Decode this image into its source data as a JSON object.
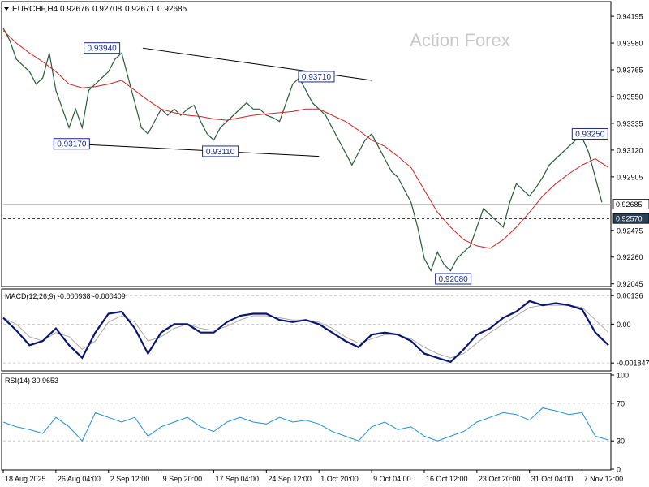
{
  "chart_data": {
    "type": "line",
    "symbol": "EURCHF,H4",
    "ohlc": {
      "open": "0.92676",
      "high": "0.92708",
      "low": "0.92671",
      "close": "0.92685"
    },
    "watermark": "Action Forex",
    "title": "",
    "xlabel": "",
    "ylabel": "",
    "price_axis": {
      "ylim": [
        0.9203,
        0.943
      ],
      "ticks": [
        0.94195,
        0.9398,
        0.93765,
        0.9355,
        0.93335,
        0.9312,
        0.92905,
        0.92475,
        0.9226,
        0.92045
      ],
      "tick_labels": [
        "0.94195",
        "0.93980",
        "0.93765",
        "0.93550",
        "0.93335",
        "0.93120",
        "0.92905",
        "0.92475",
        "0.92260",
        "0.92045"
      ],
      "current_price": 0.92685,
      "current_price_label": "0.92685",
      "support_level": 0.9257,
      "support_label": "0.92570"
    },
    "x_axis": {
      "labels": [
        "18 Aug 2025",
        "26 Aug 04:00",
        "2 Sep 12:00",
        "9 Sep 20:00",
        "17 Sep 04:00",
        "24 Sep 12:00",
        "1 Oct 20:00",
        "9 Oct 04:00",
        "16 Oct 12:00",
        "23 Oct 20:00",
        "31 Oct 04:00",
        "7 Nov 12:00"
      ],
      "label_bars": [
        0,
        40,
        80,
        120,
        160,
        200,
        240,
        280,
        320,
        360,
        400,
        440
      ],
      "total_bars": 460
    },
    "price_series": {
      "name": "",
      "x": [
        0,
        5,
        10,
        15,
        20,
        25,
        30,
        35,
        40,
        45,
        50,
        55,
        60,
        65,
        70,
        75,
        80,
        85,
        90,
        95,
        100,
        105,
        110,
        115,
        120,
        125,
        130,
        135,
        140,
        145,
        150,
        155,
        160,
        165,
        170,
        175,
        180,
        185,
        190,
        195,
        200,
        205,
        210,
        215,
        220,
        225,
        230,
        235,
        240,
        245,
        250,
        255,
        260,
        265,
        270,
        275,
        280,
        285,
        290,
        295,
        300,
        305,
        310,
        315,
        320,
        325,
        330,
        335,
        340,
        345,
        350,
        355,
        360,
        365,
        370,
        375,
        380,
        385,
        390,
        395,
        400,
        405,
        410,
        415,
        420,
        425,
        430,
        435,
        440,
        445,
        450,
        455
      ],
      "y": [
        0.941,
        0.94,
        0.9385,
        0.938,
        0.9375,
        0.9365,
        0.937,
        0.939,
        0.936,
        0.9345,
        0.933,
        0.9345,
        0.933,
        0.936,
        0.9365,
        0.937,
        0.9375,
        0.9385,
        0.939,
        0.937,
        0.935,
        0.933,
        0.9325,
        0.9335,
        0.9345,
        0.934,
        0.9345,
        0.934,
        0.9345,
        0.9348,
        0.9335,
        0.9325,
        0.932,
        0.933,
        0.9335,
        0.934,
        0.9345,
        0.935,
        0.9345,
        0.9345,
        0.934,
        0.9338,
        0.9335,
        0.935,
        0.9365,
        0.937,
        0.936,
        0.935,
        0.9345,
        0.934,
        0.933,
        0.932,
        0.931,
        0.93,
        0.931,
        0.932,
        0.9325,
        0.9315,
        0.9305,
        0.9295,
        0.929,
        0.928,
        0.927,
        0.925,
        0.9225,
        0.9215,
        0.923,
        0.922,
        0.9215,
        0.9225,
        0.923,
        0.9235,
        0.925,
        0.9265,
        0.926,
        0.9255,
        0.925,
        0.927,
        0.9285,
        0.928,
        0.9275,
        0.9282,
        0.929,
        0.93,
        0.9305,
        0.931,
        0.9315,
        0.932,
        0.9322,
        0.931,
        0.929,
        0.927
      ]
    },
    "ma_series": {
      "name": "",
      "color": "#cc2222",
      "x": [
        0,
        10,
        20,
        30,
        40,
        50,
        60,
        70,
        80,
        90,
        100,
        110,
        120,
        130,
        140,
        150,
        160,
        170,
        180,
        190,
        200,
        210,
        220,
        230,
        240,
        250,
        260,
        270,
        280,
        290,
        300,
        310,
        320,
        330,
        340,
        350,
        360,
        370,
        380,
        390,
        400,
        410,
        420,
        430,
        440,
        450,
        460
      ],
      "y": [
        0.9408,
        0.9398,
        0.939,
        0.9383,
        0.9375,
        0.9365,
        0.9362,
        0.9363,
        0.9365,
        0.9368,
        0.936,
        0.9352,
        0.9345,
        0.9342,
        0.934,
        0.9339,
        0.9337,
        0.9336,
        0.9338,
        0.934,
        0.9341,
        0.9342,
        0.9343,
        0.9345,
        0.9345,
        0.934,
        0.9335,
        0.9328,
        0.932,
        0.9315,
        0.9307,
        0.9298,
        0.928,
        0.9262,
        0.925,
        0.924,
        0.9235,
        0.9233,
        0.924,
        0.925,
        0.9262,
        0.9275,
        0.9285,
        0.9293,
        0.93,
        0.9305,
        0.9298
      ]
    },
    "annotations": [
      {
        "text": "0.93940",
        "bar": 75,
        "price": 0.9394
      },
      {
        "text": "0.93710",
        "bar": 238,
        "price": 0.9371
      },
      {
        "text": "0.93170",
        "bar": 52,
        "price": 0.9317
      },
      {
        "text": "0.93110",
        "bar": 165,
        "price": 0.9311
      },
      {
        "text": "0.93250",
        "bar": 446,
        "price": 0.9325
      },
      {
        "text": "0.92080",
        "bar": 342,
        "price": 0.9208
      }
    ],
    "trend_lines": [
      {
        "from": {
          "bar": 106,
          "price": 0.9394
        },
        "to": {
          "bar": 280,
          "price": 0.9368
        }
      },
      {
        "from": {
          "bar": 52,
          "price": 0.9317
        },
        "to": {
          "bar": 240,
          "price": 0.9307
        }
      }
    ],
    "macd": {
      "label": "MACD(12,26,9) -0.000938 -0.000409",
      "ylim": [
        -0.00215,
        0.0016
      ],
      "ticks": [
        0.00136,
        0.0,
        -0.001847
      ],
      "tick_labels": [
        "0.00136",
        "0.00",
        "-0.001847"
      ],
      "x": [
        0,
        10,
        20,
        30,
        40,
        50,
        60,
        70,
        80,
        90,
        100,
        110,
        120,
        130,
        140,
        150,
        160,
        170,
        180,
        190,
        200,
        210,
        220,
        230,
        240,
        250,
        260,
        270,
        280,
        290,
        300,
        310,
        320,
        330,
        340,
        350,
        360,
        370,
        380,
        390,
        400,
        410,
        420,
        430,
        440,
        450,
        460
      ],
      "macd": [
        0.0003,
        -0.0003,
        -0.001,
        -0.0008,
        -0.0002,
        -0.001,
        -0.0016,
        -0.0004,
        0.0005,
        0.0006,
        -0.0002,
        -0.0014,
        -0.0004,
        0.0,
        0.0,
        -0.0004,
        -0.0004,
        0.0001,
        0.0004,
        0.0005,
        0.0005,
        0.0002,
        0.0001,
        0.0002,
        0.0,
        -0.0004,
        -0.0008,
        -0.0011,
        -0.0005,
        -0.0004,
        -0.0005,
        -0.0008,
        -0.0014,
        -0.0016,
        -0.0018,
        -0.0012,
        -0.0005,
        -0.0002,
        0.0003,
        0.0006,
        0.0011,
        0.0009,
        0.001,
        0.0009,
        0.0007,
        -0.0004,
        -0.001
      ],
      "signal": [
        0.0003,
        0.0,
        -0.0006,
        -0.0008,
        -0.0004,
        -0.0006,
        -0.0012,
        -0.0008,
        0.0001,
        0.0004,
        0.0001,
        -0.0008,
        -0.0006,
        -0.0002,
        0.0,
        -0.0002,
        -0.0003,
        -0.0001,
        0.0002,
        0.0004,
        0.0004,
        0.0003,
        0.0002,
        0.0002,
        0.0001,
        -0.0002,
        -0.0006,
        -0.0009,
        -0.0007,
        -0.0005,
        -0.0005,
        -0.0007,
        -0.0011,
        -0.0014,
        -0.0016,
        -0.0014,
        -0.0009,
        -0.0004,
        0.0,
        0.0004,
        0.0008,
        0.0009,
        0.0009,
        0.0009,
        0.0008,
        0.0002,
        -0.0004
      ]
    },
    "rsi": {
      "label": "RSI(14) 30.9653",
      "ylim": [
        0,
        100
      ],
      "ticks": [
        100,
        70,
        30,
        0
      ],
      "tick_labels": [
        "100",
        "70",
        "30",
        "0"
      ],
      "x": [
        0,
        10,
        20,
        30,
        40,
        50,
        60,
        70,
        80,
        90,
        100,
        110,
        120,
        130,
        140,
        150,
        160,
        170,
        180,
        190,
        200,
        210,
        220,
        230,
        240,
        250,
        260,
        270,
        280,
        290,
        300,
        310,
        320,
        330,
        340,
        350,
        360,
        370,
        380,
        390,
        400,
        410,
        420,
        430,
        440,
        450,
        460
      ],
      "values": [
        50,
        45,
        42,
        38,
        55,
        45,
        30,
        60,
        55,
        50,
        55,
        35,
        45,
        50,
        55,
        45,
        40,
        50,
        55,
        50,
        48,
        55,
        50,
        52,
        48,
        40,
        35,
        30,
        45,
        50,
        42,
        45,
        35,
        30,
        35,
        40,
        50,
        55,
        60,
        58,
        52,
        65,
        62,
        58,
        60,
        35,
        31
      ]
    }
  }
}
